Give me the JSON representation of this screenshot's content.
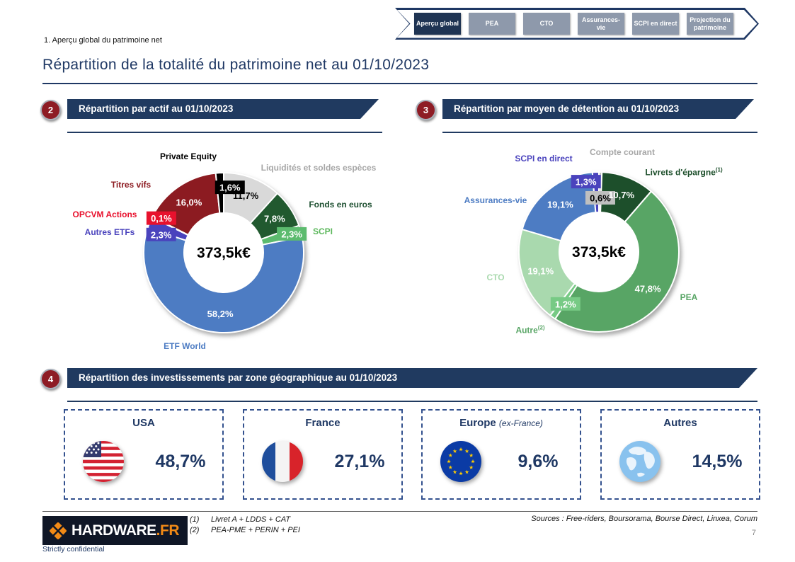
{
  "colors": {
    "navy": "#1f3864",
    "banner": "#203a60",
    "tab_active": "#1f3453",
    "tab_inactive": "#8e99ab",
    "badge_red": "#8e1c25",
    "orange": "#f28a16",
    "line_gray": "#595959",
    "text_gray": "#808080"
  },
  "tabs": {
    "items": [
      {
        "label": "Aperçu global",
        "active": true
      },
      {
        "label": "PEA",
        "active": false
      },
      {
        "label": "CTO",
        "active": false
      },
      {
        "label": "Assurances-vie",
        "active": false
      },
      {
        "label": "SCPI en direct",
        "active": false
      },
      {
        "label": "Projection du patrimoine",
        "active": false
      }
    ]
  },
  "breadcrumb": "1. Aperçu global du patrimoine net",
  "title": "Répartition de la totalité du patrimoine net au 01/10/2023",
  "sections": [
    {
      "num": "2",
      "title": "Répartition par actif au 01/10/2023"
    },
    {
      "num": "3",
      "title": "Répartition par moyen de détention au 01/10/2023"
    },
    {
      "num": "4",
      "title": "Répartition des investissements par zone géographique au 01/10/2023"
    }
  ],
  "chart_data": [
    {
      "type": "pie",
      "donut": true,
      "title": "Répartition par actif au 01/10/2023",
      "center_label": "373,5k€",
      "units": "%",
      "legend_position": "around",
      "segments": [
        {
          "name": "Liquidités et soldes espèces",
          "value": 11.7,
          "value_label": "11,7%",
          "color": "#d9d9d9",
          "name_color": "#a6a6a6",
          "label_style": "inside",
          "label_color": "#000000"
        },
        {
          "name": "Fonds en euros",
          "value": 7.8,
          "value_label": "7,8%",
          "color": "#21592f",
          "name_color": "#1f5132",
          "label_style": "inside",
          "label_color": "#ffffff"
        },
        {
          "name": "SCPI",
          "value": 2.3,
          "value_label": "2,3%",
          "color": "#5cbb6e",
          "name_color": "#5cb85c",
          "label_style": "box",
          "label_color": "#ffffff",
          "label_dx": -4,
          "label_dy": 2
        },
        {
          "name": "ETF World",
          "value": 58.2,
          "value_label": "58,2%",
          "color": "#4d7cc3",
          "name_color": "#4d7cc3",
          "label_style": "inside",
          "label_color": "#ffffff"
        },
        {
          "name": "Autres ETFs",
          "value": 2.3,
          "value_label": "2,3%",
          "color": "#4a43bd",
          "name_color": "#4a43bd",
          "label_style": "box",
          "label_color": "#ffffff",
          "label_dx": 8,
          "label_dy": 14
        },
        {
          "name": "OPCVM Actions",
          "value": 0.1,
          "value_label": "0,1%",
          "color": "#e8112d",
          "name_color": "#e8112d",
          "label_style": "box",
          "label_color": "#ffffff",
          "label_dx": 5,
          "label_dy": -2
        },
        {
          "name": "Titres vifs",
          "value": 16.0,
          "value_label": "16,0%",
          "color": "#8c1b21",
          "name_color": "#8c1b21",
          "label_style": "inside",
          "label_color": "#ffffff"
        },
        {
          "name": "Private Equity",
          "value": 1.6,
          "value_label": "1,6%",
          "color": "#000000",
          "name_color": "#000000",
          "label_style": "box",
          "label_color": "#ffffff",
          "label_dx": 14,
          "label_dy": 12
        }
      ]
    },
    {
      "type": "pie",
      "donut": true,
      "title": "Répartition par moyen de détention au 01/10/2023",
      "center_label": "373,5k€",
      "units": "%",
      "legend_position": "around",
      "segments": [
        {
          "name": "Compte courant",
          "value": 0.6,
          "value_label": "0,6%",
          "color": "#bfbfbf",
          "name_color": "#a6a6a6",
          "label_style": "box",
          "label_color": "#000000",
          "label_dx": 0,
          "label_dy": 28
        },
        {
          "name": "Livrets d'épargne",
          "sup": "(1)",
          "value": 10.7,
          "value_label": "10,7%",
          "color": "#1d4f2b",
          "name_color": "#1d4f2b",
          "label_style": "inside",
          "label_color": "#ffffff"
        },
        {
          "name": "PEA",
          "value": 47.8,
          "value_label": "47,8%",
          "color": "#58a565",
          "name_color": "#58a565",
          "label_style": "inside",
          "label_color": "#ffffff"
        },
        {
          "name": "Autre",
          "sup": "(2)",
          "value": 1.2,
          "value_label": "1,2%",
          "color": "#77ca85",
          "name_color": "#58a565",
          "label_style": "box",
          "label_color": "#ffffff",
          "label_dx": 13,
          "label_dy": -11
        },
        {
          "name": "CTO",
          "value": 19.1,
          "value_label": "19,1%",
          "color": "#a9d9ae",
          "name_color": "#a9d9ae",
          "label_style": "inside",
          "label_color": "#ffffff"
        },
        {
          "name": "Assurances-vie",
          "value": 19.1,
          "value_label": "19,1%",
          "color": "#4d7cc3",
          "name_color": "#4d7cc3",
          "label_style": "inside",
          "label_color": "#ffffff"
        },
        {
          "name": "SCPI en direct",
          "value": 1.3,
          "value_label": "1,3%",
          "color": "#4a43bd",
          "name_color": "#4a43bd",
          "label_style": "box",
          "label_color": "#ffffff",
          "label_dx": -14,
          "label_dy": 5
        }
      ]
    }
  ],
  "geo": {
    "cards": [
      {
        "title": "USA",
        "subtitle": "",
        "value": "48,7%",
        "flag": "usa-flag"
      },
      {
        "title": "France",
        "subtitle": "",
        "value": "27,1%",
        "flag": "france-flag"
      },
      {
        "title": "Europe",
        "subtitle": "(ex-France)",
        "value": "9,6%",
        "flag": "eu-flag"
      },
      {
        "title": "Autres",
        "subtitle": "",
        "value": "14,5%",
        "flag": "globe-icon"
      }
    ]
  },
  "footer": {
    "logo_text": "HARDWARE",
    "logo_suffix": ".FR",
    "footnotes": [
      {
        "num": "(1)",
        "text": "Livret A + LDDS + CAT"
      },
      {
        "num": "(2)",
        "text": "PEA-PME + PERIN + PEI"
      }
    ],
    "sources": "Sources : Free-riders, Boursorama, Bourse Direct, Linxea, Corum",
    "page_number": "7",
    "confidential": "Strictly confidential"
  }
}
